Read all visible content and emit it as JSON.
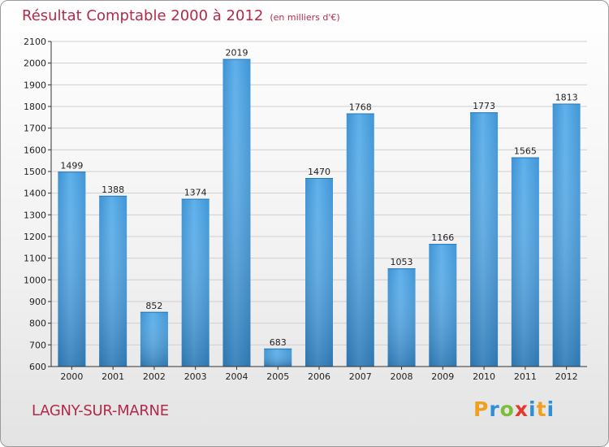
{
  "header": {
    "title": "Résultat Comptable 2000 à 2012",
    "subtitle": "(en milliers d'€)"
  },
  "footer": {
    "town": "LAGNY-SUR-MARNE",
    "logo": {
      "text": "Proxiti",
      "letters": [
        "P",
        "r",
        "o",
        "x",
        "i",
        "t",
        "i"
      ]
    }
  },
  "colors": {
    "bar": "#4a9fdd",
    "bar_light": "#63b3ea",
    "title": "#b22a4a",
    "grid": "#cfcfcf"
  },
  "chart_data": {
    "type": "bar",
    "title": "Résultat Comptable 2000 à 2012",
    "subtitle": "(en milliers d'€)",
    "xlabel": "",
    "ylabel": "",
    "ylim": [
      600,
      2100
    ],
    "yticks": [
      600,
      700,
      800,
      900,
      1000,
      1100,
      1200,
      1300,
      1400,
      1500,
      1600,
      1700,
      1800,
      1900,
      2000,
      2100
    ],
    "grid": true,
    "categories": [
      "2000",
      "2001",
      "2002",
      "2003",
      "2004",
      "2005",
      "2006",
      "2007",
      "2008",
      "2009",
      "2010",
      "2011",
      "2012"
    ],
    "values": [
      1499,
      1388,
      852,
      1374,
      2019,
      683,
      1470,
      1768,
      1053,
      1166,
      1773,
      1565,
      1813
    ]
  }
}
